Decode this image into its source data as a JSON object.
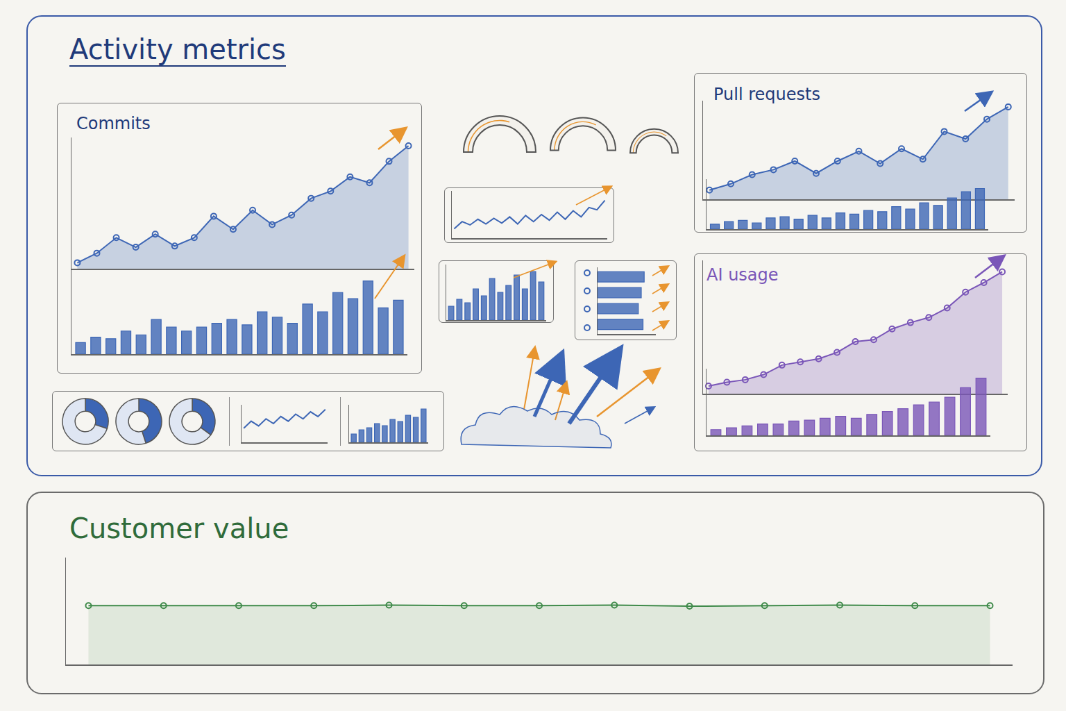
{
  "sections": [
    {
      "title": "Activity metrics",
      "color": "#1f3a7a"
    },
    {
      "title": "Customer value",
      "color": "#2f6b3a"
    }
  ],
  "chart_data": [
    {
      "type": "area",
      "title": "Commits",
      "color": "#3d66b5",
      "marker": "circle",
      "line_style": "solid",
      "grid": false,
      "tick_labels": false,
      "categories": [
        null,
        null,
        null,
        null,
        null,
        null,
        null,
        null,
        null,
        null,
        null,
        null,
        null,
        null,
        null,
        null,
        null,
        null
      ],
      "values": [
        5,
        13,
        26,
        18,
        29,
        19,
        26,
        44,
        33,
        49,
        37,
        45,
        59,
        65,
        77,
        72,
        90,
        103
      ],
      "ylim": [
        0,
        110
      ]
    },
    {
      "type": "bar",
      "color": "#3d66b5",
      "grid": false,
      "tick_labels": false,
      "categories": [
        null,
        null,
        null,
        null,
        null,
        null,
        null,
        null,
        null,
        null,
        null,
        null,
        null,
        null,
        null,
        null,
        null,
        null,
        null,
        null,
        null,
        null
      ],
      "values": [
        15,
        22,
        20,
        30,
        25,
        45,
        35,
        30,
        35,
        40,
        45,
        38,
        55,
        48,
        40,
        65,
        55,
        80,
        72,
        95,
        60,
        70
      ],
      "ylim": [
        0,
        110
      ]
    },
    {
      "type": "gauge",
      "color": "#e8952f",
      "tick_labels": false,
      "values": [
        60
      ],
      "ylim": [
        0,
        100
      ]
    },
    {
      "type": "gauge",
      "color": "#e8952f",
      "tick_labels": false,
      "values": [
        65
      ],
      "ylim": [
        0,
        100
      ]
    },
    {
      "type": "gauge",
      "color": "#e8952f",
      "tick_labels": false,
      "values": [
        70
      ],
      "ylim": [
        0,
        100
      ]
    },
    {
      "type": "line",
      "color": "#3d66b5",
      "marker": "none",
      "line_style": "solid",
      "grid": false,
      "tick_labels": false,
      "categories": [
        null,
        null,
        null,
        null,
        null,
        null,
        null,
        null,
        null,
        null,
        null,
        null,
        null,
        null,
        null,
        null,
        null,
        null,
        null,
        null
      ],
      "values": [
        20,
        35,
        28,
        40,
        30,
        42,
        32,
        45,
        30,
        48,
        35,
        50,
        38,
        55,
        40,
        58,
        45,
        65,
        60,
        80
      ],
      "ylim": [
        0,
        100
      ]
    },
    {
      "type": "bar",
      "color": "#3d66b5",
      "grid": false,
      "tick_labels": false,
      "categories": [
        null,
        null,
        null,
        null,
        null,
        null,
        null,
        null,
        null,
        null,
        null,
        null
      ],
      "values": [
        20,
        30,
        25,
        45,
        35,
        60,
        40,
        50,
        65,
        45,
        70,
        55
      ],
      "ylim": [
        0,
        80
      ]
    },
    {
      "type": "bar",
      "orientation": "horizontal",
      "color": "#3d66b5",
      "grid": false,
      "tick_labels": false,
      "categories": [
        null,
        null,
        null,
        null
      ],
      "values": [
        80,
        75,
        70,
        78
      ],
      "xlim": [
        0,
        100
      ]
    },
    {
      "type": "area",
      "title": "Pull requests",
      "color": "#3d66b5",
      "marker": "circle",
      "line_style": "solid",
      "grid": false,
      "tick_labels": false,
      "categories": [
        null,
        null,
        null,
        null,
        null,
        null,
        null,
        null,
        null,
        null,
        null,
        null,
        null,
        null,
        null
      ],
      "values": [
        15,
        25,
        40,
        48,
        62,
        42,
        62,
        78,
        58,
        82,
        65,
        110,
        98,
        130,
        150
      ],
      "ylim": [
        0,
        160
      ]
    },
    {
      "type": "bar",
      "color": "#3d66b5",
      "grid": false,
      "tick_labels": false,
      "categories": [
        null,
        null,
        null,
        null,
        null,
        null,
        null,
        null,
        null,
        null,
        null,
        null,
        null,
        null,
        null,
        null,
        null,
        null,
        null,
        null
      ],
      "values": [
        8,
        12,
        14,
        10,
        18,
        20,
        16,
        22,
        18,
        26,
        24,
        30,
        28,
        36,
        32,
        42,
        38,
        50,
        60,
        65
      ],
      "ylim": [
        0,
        80
      ]
    },
    {
      "type": "area",
      "title": "AI usage",
      "color": "#7a56b8",
      "marker": "circle",
      "line_style": "solid",
      "grid": false,
      "tick_labels": false,
      "categories": [
        null,
        null,
        null,
        null,
        null,
        null,
        null,
        null,
        null,
        null,
        null,
        null,
        null,
        null,
        null,
        null,
        null
      ],
      "values": [
        12,
        18,
        22,
        30,
        45,
        50,
        55,
        65,
        82,
        85,
        102,
        112,
        120,
        135,
        160,
        175,
        192
      ],
      "ylim": [
        0,
        210
      ]
    },
    {
      "type": "bar",
      "color": "#7a56b8",
      "grid": false,
      "tick_labels": false,
      "categories": [
        null,
        null,
        null,
        null,
        null,
        null,
        null,
        null,
        null,
        null,
        null,
        null,
        null,
        null,
        null,
        null,
        null,
        null
      ],
      "values": [
        6,
        8,
        10,
        12,
        12,
        15,
        16,
        18,
        20,
        18,
        22,
        25,
        28,
        32,
        35,
        40,
        50,
        60
      ],
      "ylim": [
        0,
        70
      ]
    },
    {
      "type": "pie",
      "categories": [
        null,
        null
      ],
      "values": [
        30,
        70
      ],
      "colors": [
        "#3d66b5",
        "#dfe6f3"
      ]
    },
    {
      "type": "pie",
      "categories": [
        null,
        null
      ],
      "values": [
        45,
        55
      ],
      "colors": [
        "#3d66b5",
        "#dfe6f3"
      ]
    },
    {
      "type": "pie",
      "categories": [
        null,
        null
      ],
      "values": [
        35,
        65
      ],
      "colors": [
        "#3d66b5",
        "#dfe6f3"
      ]
    },
    {
      "type": "line",
      "color": "#3d66b5",
      "marker": "none",
      "line_style": "solid",
      "grid": false,
      "tick_labels": false,
      "categories": [
        null,
        null,
        null,
        null,
        null,
        null,
        null,
        null,
        null,
        null,
        null,
        null
      ],
      "values": [
        30,
        45,
        35,
        50,
        40,
        55,
        45,
        60,
        50,
        65,
        55,
        70
      ],
      "ylim": [
        0,
        80
      ]
    },
    {
      "type": "bar",
      "color": "#3d66b5",
      "grid": false,
      "tick_labels": false,
      "categories": [
        null,
        null,
        null,
        null,
        null,
        null,
        null,
        null,
        null,
        null
      ],
      "values": [
        20,
        30,
        35,
        45,
        40,
        55,
        50,
        65,
        60,
        80
      ],
      "ylim": [
        0,
        90
      ]
    },
    {
      "type": "area",
      "color": "#3f8a4a",
      "marker": "circle",
      "line_style": "solid",
      "grid": false,
      "tick_labels": false,
      "categories": [
        null,
        null,
        null,
        null,
        null,
        null,
        null,
        null,
        null,
        null,
        null,
        null,
        null
      ],
      "values": [
        55,
        55,
        55,
        55,
        55.5,
        55,
        55,
        55.5,
        54.5,
        55,
        55.5,
        55,
        55
      ],
      "ylim": [
        0,
        100
      ]
    }
  ]
}
